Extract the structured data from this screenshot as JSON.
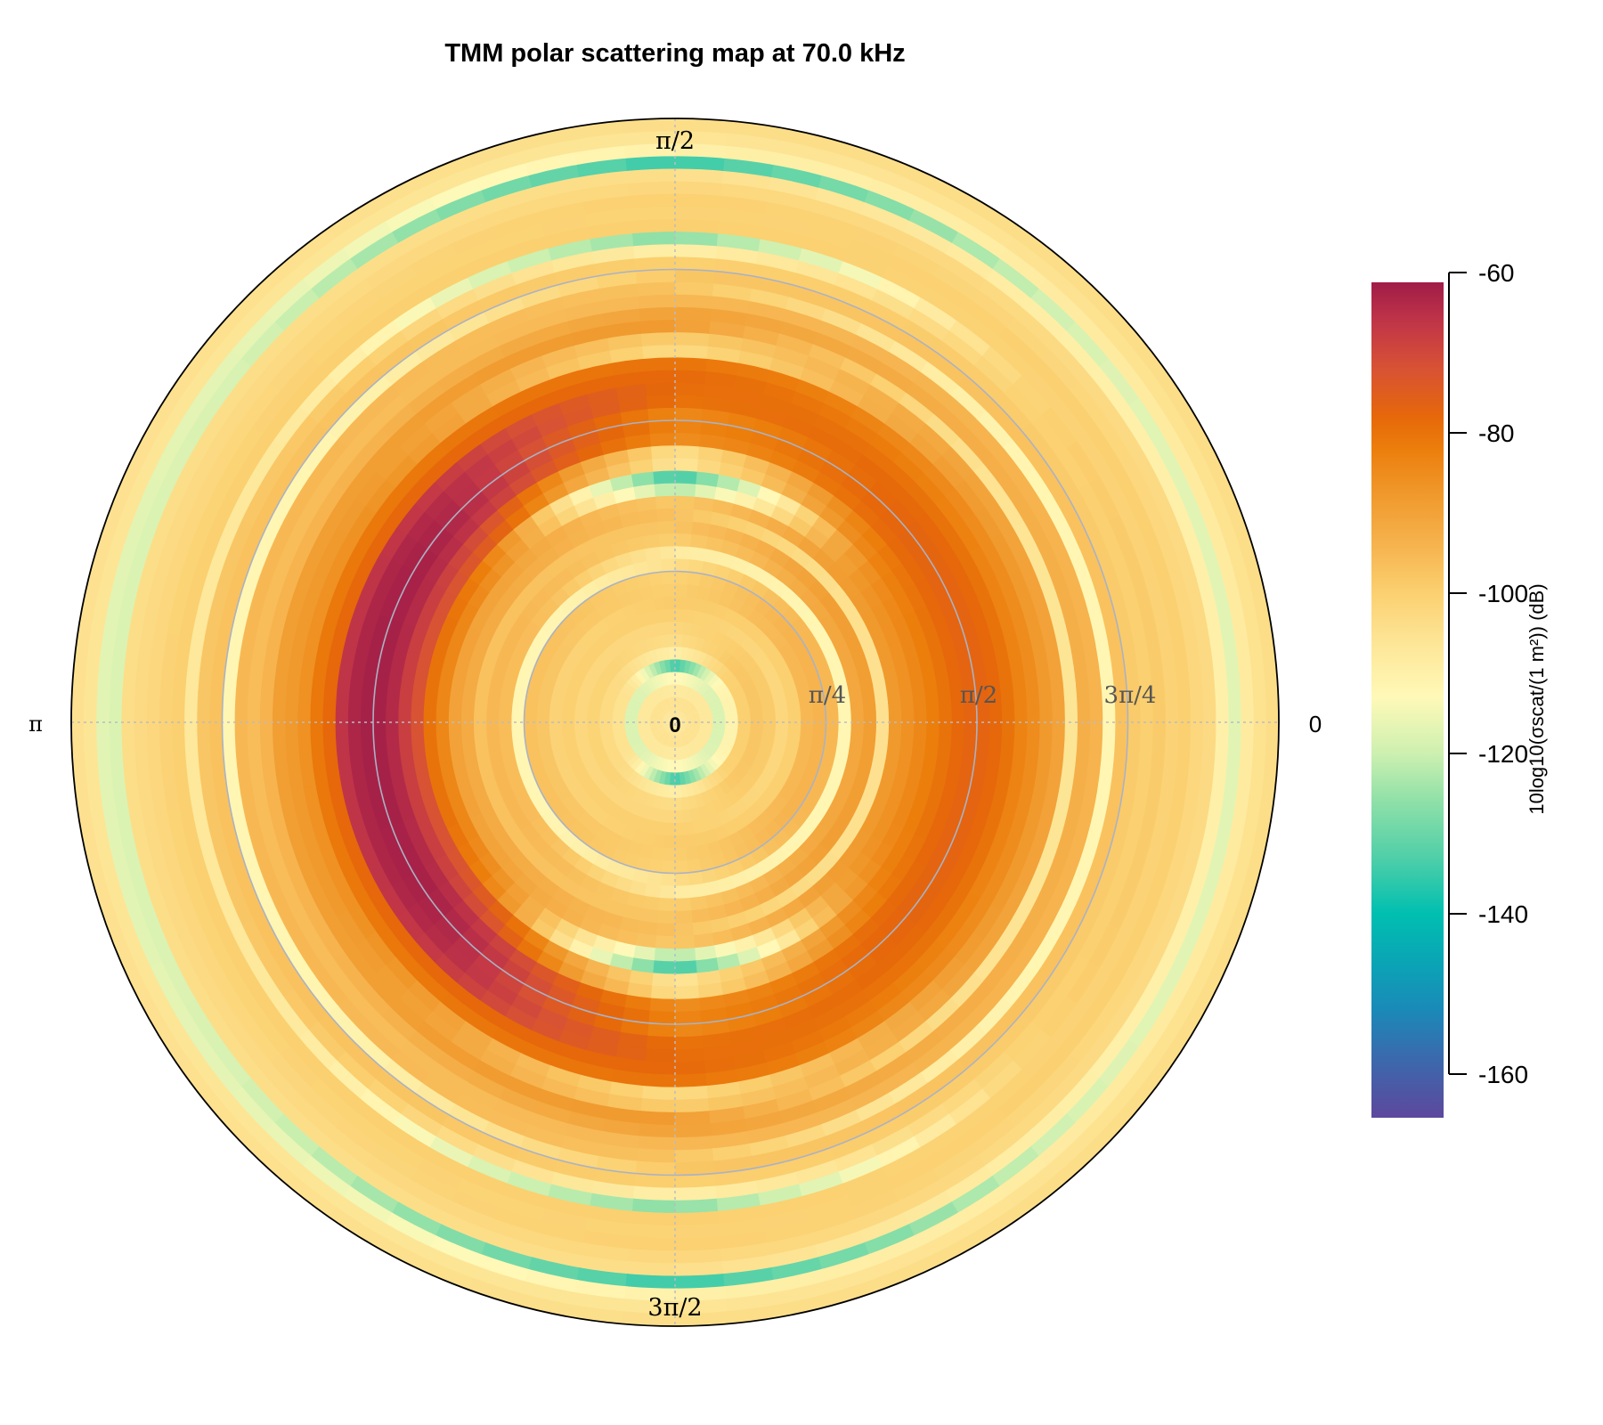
{
  "chart_data": {
    "type": "heatmap",
    "projection": "polar",
    "title": "TMM polar scattering map at 70.0 kHz",
    "angular_tick_labels": {
      "right": "0",
      "top": "π/2",
      "left": "π",
      "bottom": "3π/2"
    },
    "radial_tick_labels": [
      "0",
      "π/4",
      "π/2",
      "3π/4",
      "π"
    ],
    "radial_range": [
      0,
      3.14159
    ],
    "radial_bins": 48,
    "angular_bins": 72,
    "grid": true,
    "colorbar": {
      "label": "10log10(σscat/(1 m²)) (dB)",
      "label_parts": {
        "pre": "10log",
        "sub1": "10",
        "mid": "(σ",
        "sub2": "scat",
        "post": "/(1 m",
        "sup": "2",
        "end": ")) (dB)"
      },
      "ticks": [
        "-60",
        "-80",
        "-100",
        "-120",
        "-140",
        "-160"
      ],
      "tick_values": [
        -60,
        -80,
        -100,
        -120,
        -140,
        -160
      ],
      "range": [
        -165.5,
        -61.2
      ],
      "placement": "right",
      "colormap": [
        [
          -165,
          "#5b4a9e"
        ],
        [
          -158,
          "#3a6aad"
        ],
        [
          -152,
          "#1a8ab8"
        ],
        [
          -146,
          "#0aa5b5"
        ],
        [
          -140,
          "#00bfb0"
        ],
        [
          -133,
          "#50cfa8"
        ],
        [
          -126,
          "#8fe0a8"
        ],
        [
          -120,
          "#cdf0b0"
        ],
        [
          -113,
          "#fff9b8"
        ],
        [
          -106,
          "#fde596"
        ],
        [
          -100,
          "#fbd070"
        ],
        [
          -94,
          "#f6b34e"
        ],
        [
          -88,
          "#f09a2e"
        ],
        [
          -82,
          "#ec7e0c"
        ],
        [
          -78,
          "#e6680a"
        ],
        [
          -72,
          "#d85234"
        ],
        [
          -66,
          "#c03448"
        ],
        [
          -61,
          "#a01c48"
        ]
      ]
    },
    "radial_profiles_db": {
      "theta_0": [
        -106,
        -105,
        -107,
        -118,
        -111,
        -100,
        -98,
        -99,
        -102,
        -100,
        -95,
        -94,
        -95,
        -112,
        -91,
        -89,
        -105,
        -88,
        -86,
        -84,
        -82,
        -80,
        -78,
        -77,
        -77,
        -78,
        -80,
        -83,
        -85,
        -88,
        -90,
        -106,
        -93,
        -94,
        -112,
        -97,
        -99,
        -100,
        -99,
        -101,
        -100,
        -102,
        -103,
        -110,
        -117,
        -108,
        -105,
        -104
      ],
      "theta_pi_over_2": [
        -106,
        -105,
        -108,
        -112,
        -136,
        -110,
        -104,
        -102,
        -100,
        -99,
        -100,
        -101,
        -104,
        -108,
        -100,
        -98,
        -97,
        -99,
        -125,
        -138,
        -108,
        -106,
        -86,
        -84,
        -85,
        -80,
        -79,
        -78,
        -80,
        -104,
        -100,
        -88,
        -90,
        -95,
        -97,
        -98,
        -100,
        -110,
        -128,
        -100,
        -101,
        -100,
        -102,
        -104,
        -136,
        -110,
        -106,
        -104
      ],
      "theta_pi": [
        -106,
        -105,
        -107,
        -118,
        -105,
        -103,
        -101,
        -102,
        -100,
        -101,
        -98,
        -97,
        -112,
        -96,
        -95,
        -97,
        -92,
        -90,
        -84,
        -80,
        -72,
        -68,
        -64,
        -62,
        -62,
        -63,
        -66,
        -78,
        -81,
        -86,
        -88,
        -89,
        -94,
        -96,
        -95,
        -112,
        -97,
        -98,
        -107,
        -100,
        -101,
        -102,
        -103,
        -104,
        -118,
        -117,
        -106,
        -105
      ],
      "theta_3pi_over_2": [
        -106,
        -105,
        -108,
        -112,
        -136,
        -110,
        -104,
        -102,
        -100,
        -99,
        -100,
        -101,
        -104,
        -108,
        -100,
        -98,
        -97,
        -99,
        -125,
        -138,
        -108,
        -106,
        -86,
        -84,
        -85,
        -80,
        -79,
        -78,
        -80,
        -104,
        -100,
        -88,
        -90,
        -95,
        -97,
        -98,
        -100,
        -110,
        -128,
        -100,
        -101,
        -100,
        -102,
        -104,
        -136,
        -110,
        -106,
        -104
      ]
    }
  }
}
